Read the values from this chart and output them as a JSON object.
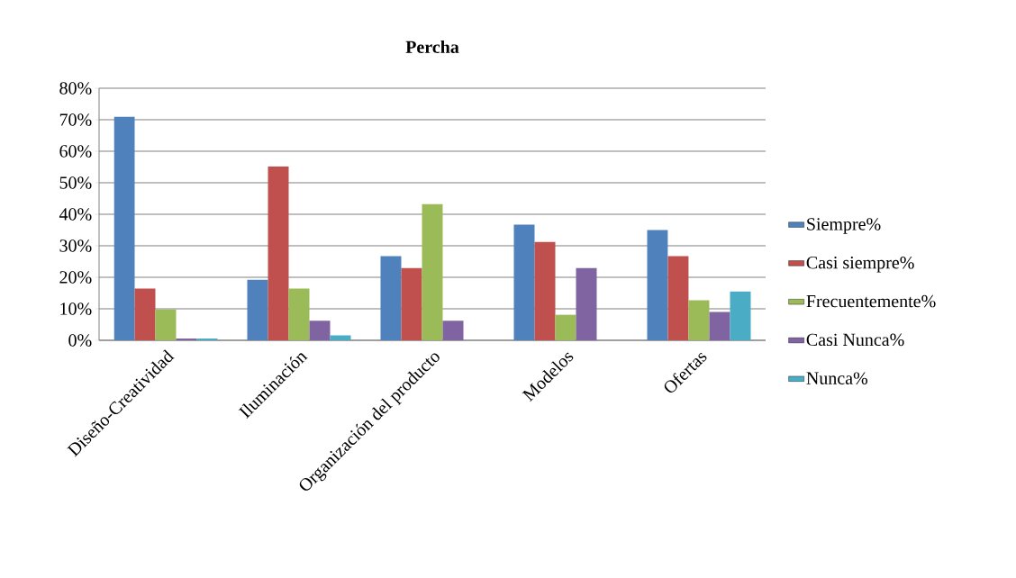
{
  "chart_data": {
    "type": "bar",
    "title": "Percha",
    "categories": [
      "Diseño-Creatividad",
      "Iluminación",
      "Organización del producto",
      "Modelos",
      "Ofertas"
    ],
    "series": [
      {
        "name": "Siempre%",
        "color": "#4f81bd",
        "values": [
          71,
          19.2,
          26.7,
          36.7,
          35
        ]
      },
      {
        "name": "Casi siempre%",
        "color": "#c0504d",
        "values": [
          16.4,
          55.2,
          22.9,
          31.2,
          26.7
        ]
      },
      {
        "name": "Frecuentemente%",
        "color": "#9bbb59",
        "values": [
          9.8,
          16.4,
          43.2,
          8.1,
          12.7
        ]
      },
      {
        "name": "Casi Nunca%",
        "color": "#8064a2",
        "values": [
          0.6,
          6.2,
          6.2,
          22.9,
          9
        ]
      },
      {
        "name": "Nunca%",
        "color": "#4bacc6",
        "values": [
          0.6,
          1.6,
          0,
          0,
          15.5
        ]
      }
    ],
    "ylim": [
      0,
      80
    ],
    "yticks": [
      {
        "value": 0,
        "label": "0%"
      },
      {
        "value": 10,
        "label": "10%"
      },
      {
        "value": 20,
        "label": "20%"
      },
      {
        "value": 30,
        "label": "30%"
      },
      {
        "value": 40,
        "label": "40%"
      },
      {
        "value": 50,
        "label": "50%"
      },
      {
        "value": 60,
        "label": "60%"
      },
      {
        "value": 70,
        "label": "70%"
      },
      {
        "value": 80,
        "label": "80%"
      }
    ],
    "grid": "y",
    "legend": "right"
  }
}
